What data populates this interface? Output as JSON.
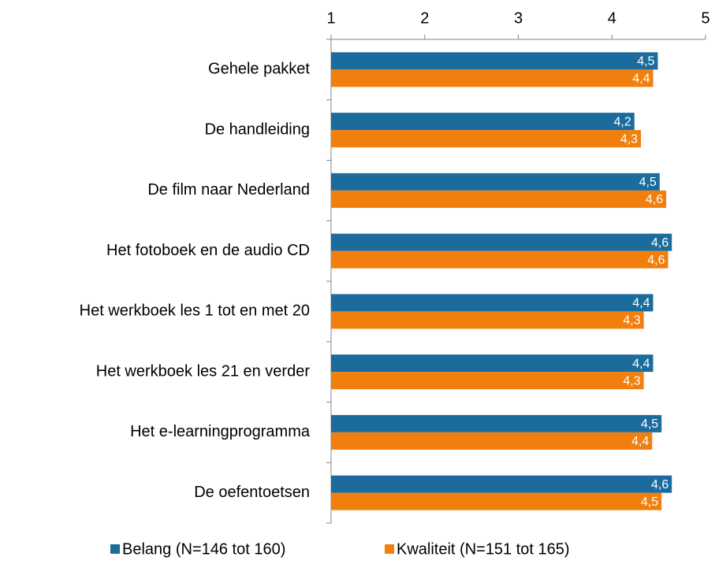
{
  "chart_data": {
    "type": "bar",
    "orientation": "horizontal",
    "categories": [
      "Gehele pakket",
      "De handleiding",
      "De film naar Nederland",
      "Het fotoboek en de audio CD",
      "Het werkboek les 1 tot en met 20",
      "Het werkboek les 21 en verder",
      "Het e-learningprogramma",
      "De oefentoetsen"
    ],
    "series": [
      {
        "name": "Belang (N=146  tot 160)",
        "color": "#1b6c9c",
        "values": [
          4.49,
          4.24,
          4.51,
          4.64,
          4.44,
          4.44,
          4.53,
          4.64
        ],
        "value_labels": [
          "4,5",
          "4,2",
          "4,5",
          "4,6",
          "4,4",
          "4,4",
          "4,5",
          "4,6"
        ]
      },
      {
        "name": "Kwaliteit (N=151  tot 165)",
        "color": "#f07f0e",
        "values": [
          4.44,
          4.31,
          4.58,
          4.6,
          4.34,
          4.34,
          4.43,
          4.53
        ],
        "value_labels": [
          "4,4",
          "4,3",
          "4,6",
          "4,6",
          "4,3",
          "4,3",
          "4,4",
          "4,5"
        ]
      }
    ],
    "xlim": [
      1,
      5
    ],
    "xticks": [
      1,
      2,
      3,
      4,
      5
    ],
    "grid": false
  }
}
